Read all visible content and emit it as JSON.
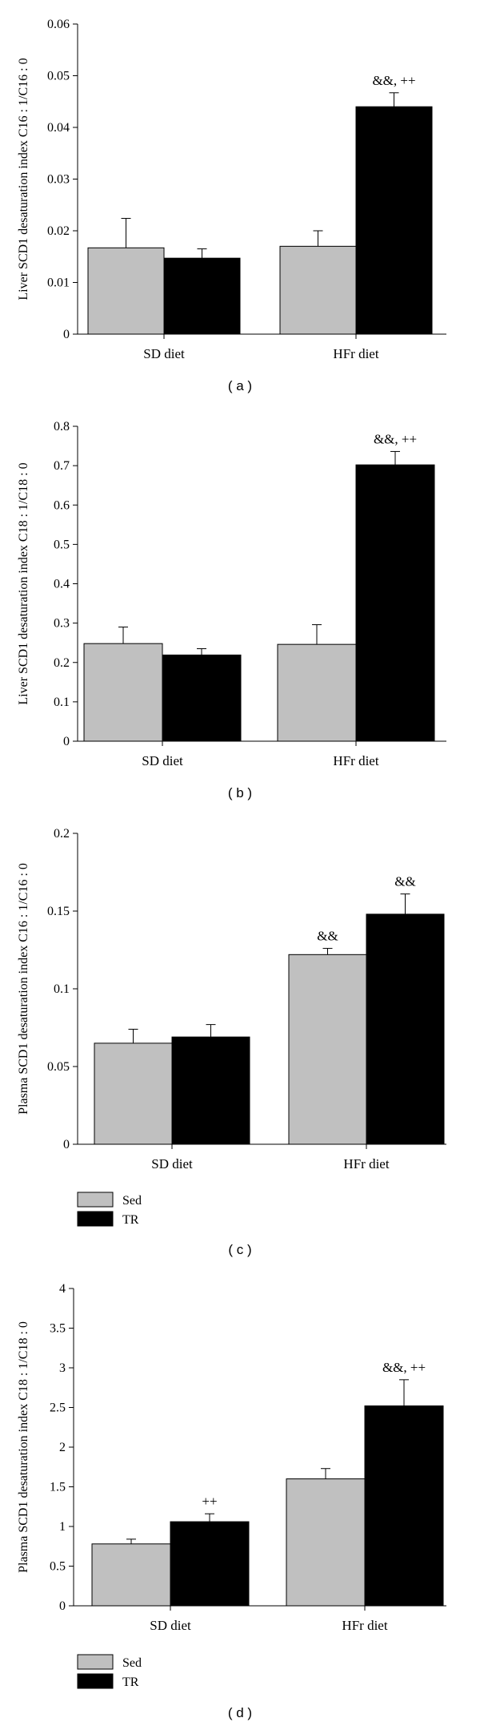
{
  "chart_data": [
    {
      "type": "bar",
      "panel_label": "( a )",
      "ylabel": "Liver SCD1 desaturation index C16 : 1/C16 : 0",
      "ylim": [
        0,
        0.06
      ],
      "yticks": [
        "0",
        "0.01",
        "0.02",
        "0.03",
        "0.04",
        "0.05",
        "0.06"
      ],
      "categories": [
        "SD diet",
        "HFr diet"
      ],
      "series": [
        {
          "name": "Sed",
          "color": "#c0c0c0",
          "values": [
            0.0167,
            0.017
          ],
          "errors": [
            0.0057,
            0.003
          ]
        },
        {
          "name": "TR",
          "color": "#000000",
          "values": [
            0.0147,
            0.044
          ],
          "errors": [
            0.0018,
            0.0027
          ]
        }
      ],
      "annotations": [
        {
          "category": 1,
          "series": 1,
          "text": "&&, ++"
        }
      ],
      "legend": false
    },
    {
      "type": "bar",
      "panel_label": "( b )",
      "ylabel": "Liver SCD1 desaturation index C18 : 1/C18 : 0",
      "ylim": [
        0,
        0.8
      ],
      "yticks": [
        "0",
        "0.1",
        "0.2",
        "0.3",
        "0.4",
        "0.5",
        "0.6",
        "0.7",
        "0.8"
      ],
      "categories": [
        "SD diet",
        "HFr diet"
      ],
      "series": [
        {
          "name": "Sed",
          "color": "#c0c0c0",
          "values": [
            0.248,
            0.246
          ],
          "errors": [
            0.042,
            0.05
          ]
        },
        {
          "name": "TR",
          "color": "#000000",
          "values": [
            0.219,
            0.702
          ],
          "errors": [
            0.016,
            0.034
          ]
        }
      ],
      "annotations": [
        {
          "category": 1,
          "series": 1,
          "text": "&&, ++"
        }
      ],
      "legend": false
    },
    {
      "type": "bar",
      "panel_label": "( c )",
      "ylabel": "Plasma SCD1 desaturation index C16 : 1/C16 : 0",
      "ylim": [
        0,
        0.2
      ],
      "yticks": [
        "0",
        "0.05",
        "0.1",
        "0.15",
        "0.2"
      ],
      "categories": [
        "SD diet",
        "HFr diet"
      ],
      "series": [
        {
          "name": "Sed",
          "color": "#c0c0c0",
          "values": [
            0.065,
            0.122
          ],
          "errors": [
            0.009,
            0.004
          ]
        },
        {
          "name": "TR",
          "color": "#000000",
          "values": [
            0.069,
            0.148
          ],
          "errors": [
            0.008,
            0.013
          ]
        }
      ],
      "annotations": [
        {
          "category": 1,
          "series": 0,
          "text": "&&"
        },
        {
          "category": 1,
          "series": 1,
          "text": "&&"
        }
      ],
      "legend": true,
      "legend_entries": [
        "Sed",
        "TR"
      ]
    },
    {
      "type": "bar",
      "panel_label": "( d )",
      "ylabel": "Plasma SCD1 desaturation index C18 : 1/C18 : 0",
      "ylim": [
        0,
        4
      ],
      "yticks": [
        "0",
        "0.5",
        "1",
        "1.5",
        "2",
        "2.5",
        "3",
        "3.5",
        "4"
      ],
      "categories": [
        "SD diet",
        "HFr diet"
      ],
      "series": [
        {
          "name": "Sed",
          "color": "#c0c0c0",
          "values": [
            0.78,
            1.6
          ],
          "errors": [
            0.06,
            0.13
          ]
        },
        {
          "name": "TR",
          "color": "#000000",
          "values": [
            1.06,
            2.52
          ],
          "errors": [
            0.1,
            0.33
          ]
        }
      ],
      "annotations": [
        {
          "category": 0,
          "series": 1,
          "text": "++"
        },
        {
          "category": 1,
          "series": 1,
          "text": "&&, ++"
        }
      ],
      "legend": true,
      "legend_entries": [
        "Sed",
        "TR"
      ]
    }
  ]
}
